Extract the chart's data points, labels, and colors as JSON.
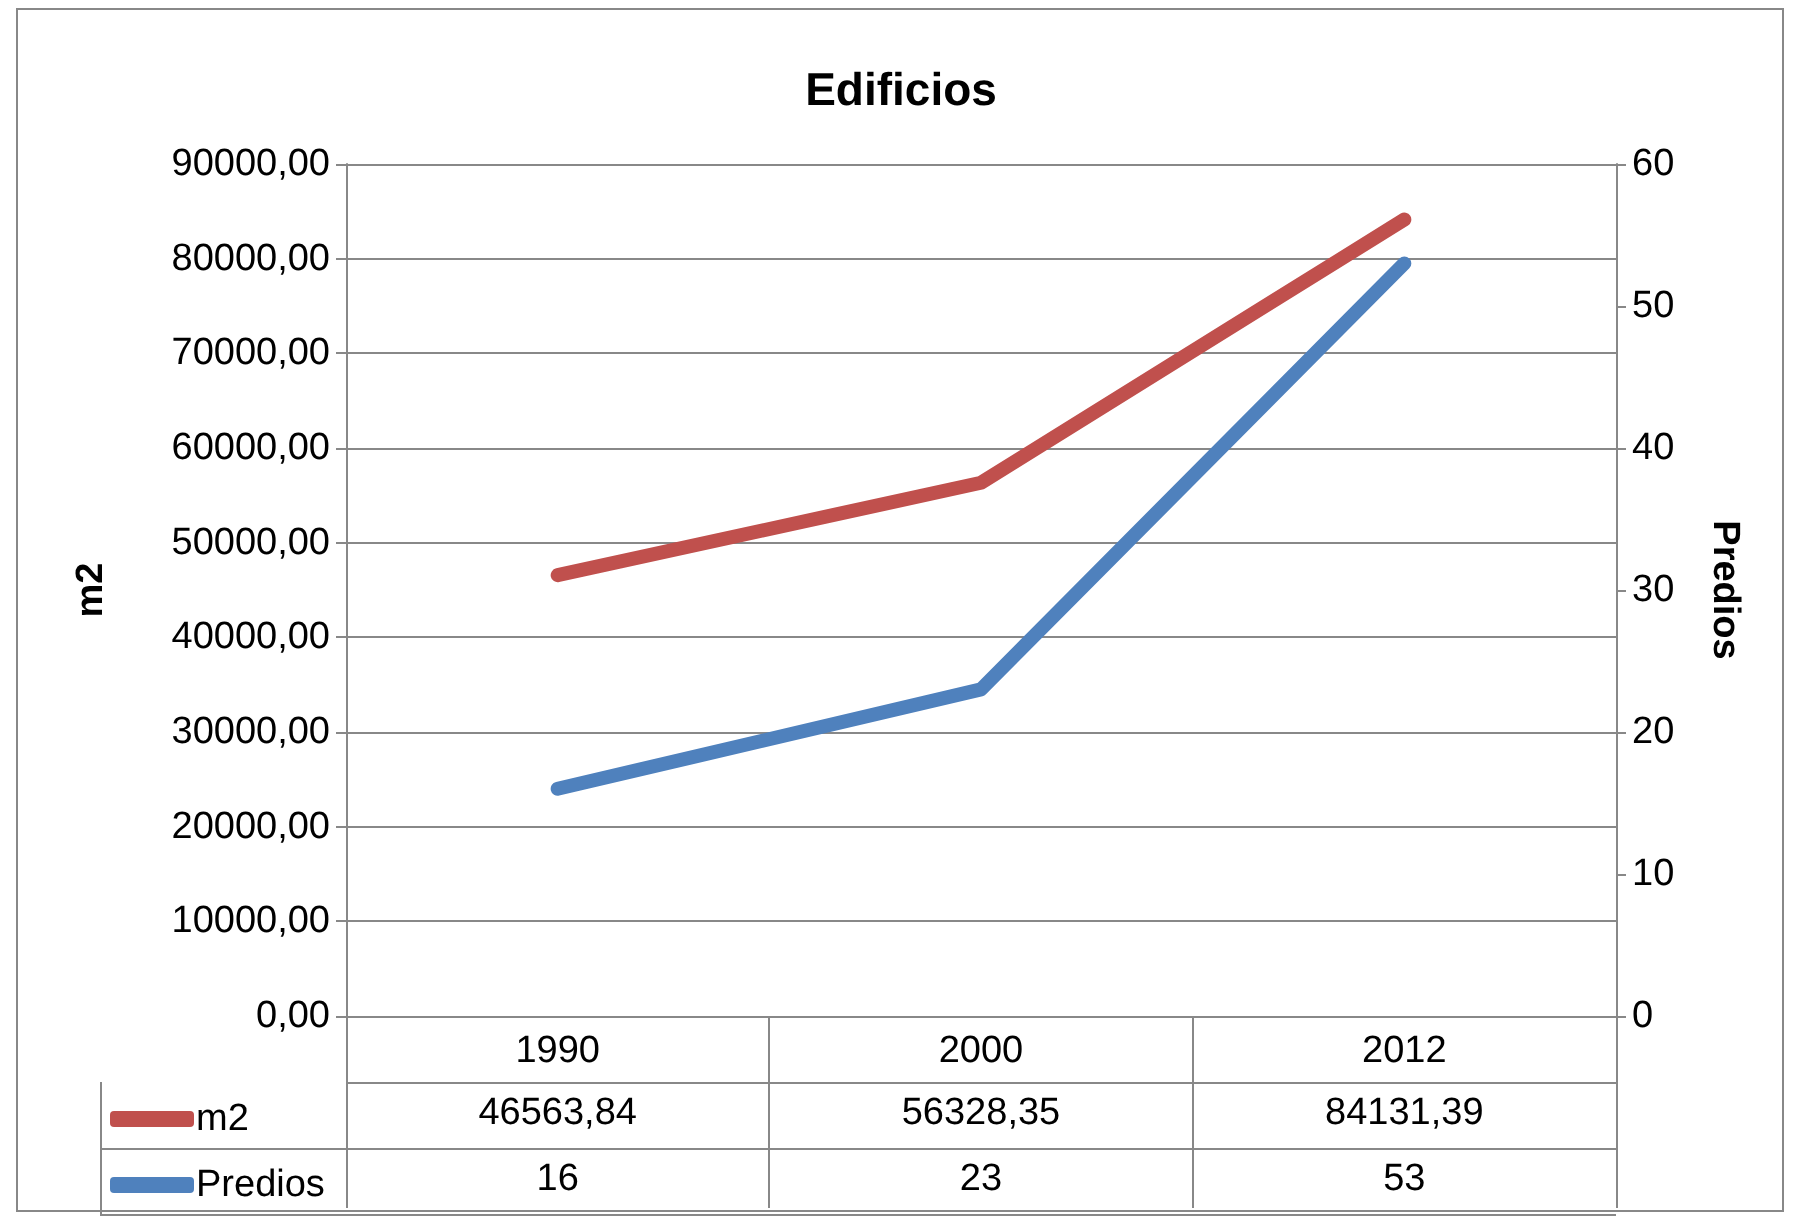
{
  "chart_data": {
    "type": "line",
    "title": "Edificios",
    "ylabel": "m2",
    "y2label": "Predios",
    "categories": [
      "1990",
      "2000",
      "2012"
    ],
    "series": [
      {
        "name": "m2",
        "color": "#c0504d",
        "values": [
          46563.84,
          56328.35,
          84131.39
        ],
        "value_labels": [
          "46563,84",
          "56328,35",
          "84131,39"
        ]
      },
      {
        "name": "Predios",
        "color": "#4f81bd",
        "values": [
          16,
          23,
          53
        ],
        "axis": "y2",
        "value_labels": [
          "16",
          "23",
          "53"
        ]
      }
    ],
    "ylim": [
      0,
      90000
    ],
    "yticks": [
      {
        "value": 0,
        "label": "0,00"
      },
      {
        "value": 10000,
        "label": "10000,00"
      },
      {
        "value": 20000,
        "label": "20000,00"
      },
      {
        "value": 30000,
        "label": "30000,00"
      },
      {
        "value": 40000,
        "label": "40000,00"
      },
      {
        "value": 50000,
        "label": "50000,00"
      },
      {
        "value": 60000,
        "label": "60000,00"
      },
      {
        "value": 70000,
        "label": "70000,00"
      },
      {
        "value": 80000,
        "label": "80000,00"
      },
      {
        "value": 90000,
        "label": "90000,00"
      }
    ],
    "y2lim": [
      0,
      60
    ],
    "y2ticks": [
      0,
      10,
      20,
      30,
      40,
      50,
      60
    ],
    "grid": "y",
    "legend": "bottom",
    "line_style": "solid"
  }
}
